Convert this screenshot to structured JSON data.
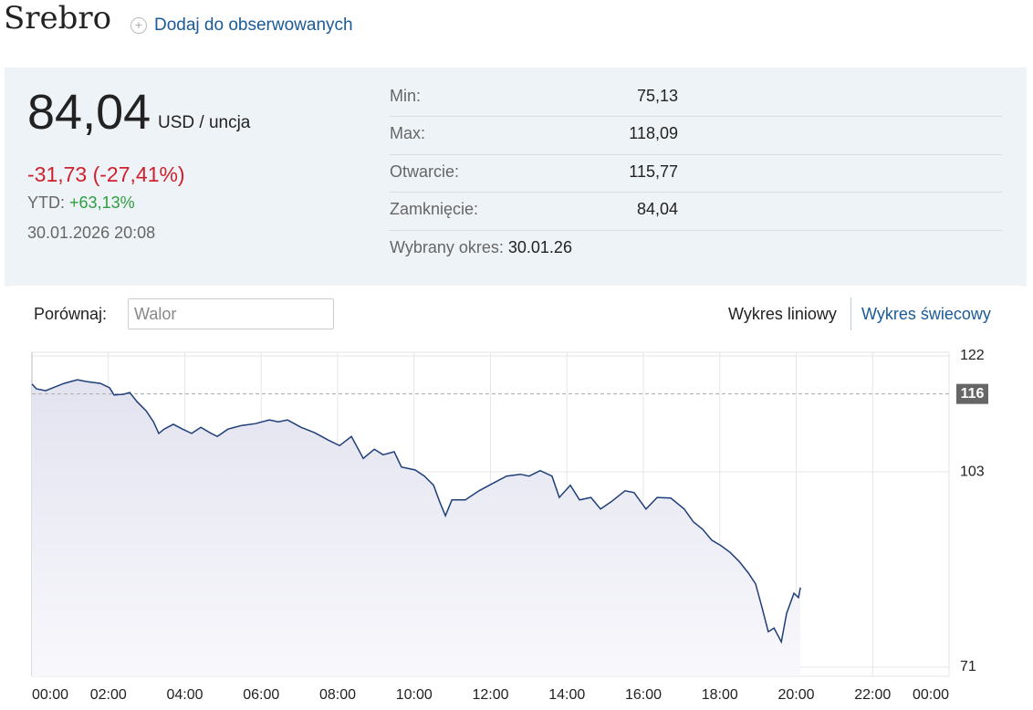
{
  "header": {
    "title": "Srebro",
    "watch_link": "Dodaj do obserwowanych"
  },
  "quote": {
    "price": "84,04",
    "unit": "USD / uncja",
    "change": "-31,73 (-27,41%)",
    "ytd_label": "YTD:",
    "ytd_value": "+63,13%",
    "timestamp": "30.01.2026 20:08"
  },
  "stats": {
    "rows": [
      [
        "Min:",
        "75,13"
      ],
      [
        "Max:",
        "118,09"
      ],
      [
        "Otwarcie:",
        "115,77"
      ],
      [
        "Zamknięcie:",
        "84,04"
      ]
    ],
    "period_label": "Wybrany okres:",
    "period_value": "30.01.26"
  },
  "controls": {
    "compare_label": "Porównaj:",
    "compare_placeholder": "Walor",
    "line_tab": "Wykres liniowy",
    "candle_tab": "Wykres świecowy"
  },
  "chart_data": {
    "type": "line",
    "color": "#1f3f7a",
    "x": [
      0,
      0.12,
      0.36,
      0.6,
      0.84,
      1.19,
      1.43,
      1.79,
      2.03,
      2.15,
      2.39,
      2.56,
      2.75,
      2.99,
      3.18,
      3.32,
      3.46,
      3.7,
      3.94,
      4.18,
      4.42,
      4.66,
      4.85,
      5.13,
      5.49,
      5.85,
      6.21,
      6.45,
      6.69,
      7.04,
      7.4,
      7.76,
      8.05,
      8.36,
      8.67,
      8.96,
      9.19,
      9.48,
      9.67,
      10.03,
      10.27,
      10.51,
      10.67,
      10.82,
      10.99,
      11.34,
      11.7,
      12.06,
      12.42,
      12.78,
      13.01,
      13.3,
      13.61,
      13.8,
      14.09,
      14.33,
      14.63,
      14.88,
      15.16,
      15.52,
      15.76,
      16.07,
      16.36,
      16.72,
      17.07,
      17.31,
      17.55,
      17.79,
      18.03,
      18.27,
      18.51,
      18.75,
      18.94,
      19.1,
      19.27,
      19.42,
      19.61,
      19.75,
      19.94,
      20.06,
      20.11
    ],
    "values": [
      117.4,
      116.6,
      116.3,
      116.9,
      117.5,
      118.09,
      117.8,
      117.5,
      116.8,
      115.6,
      115.7,
      116.0,
      114.5,
      113.0,
      111.2,
      109.3,
      110.0,
      110.8,
      110.0,
      109.3,
      110.3,
      109.4,
      108.8,
      110.0,
      110.6,
      110.9,
      111.5,
      111.2,
      111.5,
      110.3,
      109.4,
      108.2,
      107.3,
      108.8,
      105.2,
      106.7,
      105.8,
      106.3,
      103.8,
      103.3,
      102.3,
      100.8,
      98.1,
      95.8,
      98.4,
      98.4,
      99.9,
      101.1,
      102.3,
      102.6,
      102.3,
      103.2,
      102.3,
      98.8,
      100.8,
      98.4,
      98.8,
      96.9,
      98.1,
      99.9,
      99.6,
      96.9,
      98.8,
      98.7,
      96.9,
      94.8,
      93.6,
      91.8,
      90.9,
      89.8,
      88.3,
      86.4,
      84.6,
      80.9,
      76.8,
      77.4,
      75.13,
      79.8,
      83.1,
      82.4,
      84.04
    ],
    "xlim": [
      0,
      24
    ],
    "xticks": [
      {
        "value": 0,
        "label": "00:00"
      },
      {
        "value": 2,
        "label": "02:00"
      },
      {
        "value": 4,
        "label": "04:00"
      },
      {
        "value": 6,
        "label": "06:00"
      },
      {
        "value": 8,
        "label": "08:00"
      },
      {
        "value": 10,
        "label": "10:00"
      },
      {
        "value": 12,
        "label": "12:00"
      },
      {
        "value": 14,
        "label": "14:00"
      },
      {
        "value": 16,
        "label": "16:00"
      },
      {
        "value": 18,
        "label": "18:00"
      },
      {
        "value": 20,
        "label": "20:00"
      },
      {
        "value": 22,
        "label": "22:00"
      },
      {
        "value": 24,
        "label": "00:00"
      }
    ],
    "ylim": [
      69.5,
      122.6
    ],
    "yticks": [
      71,
      103,
      122
    ],
    "grid": true,
    "reference_line": {
      "value": 115.77,
      "label": "116"
    }
  }
}
